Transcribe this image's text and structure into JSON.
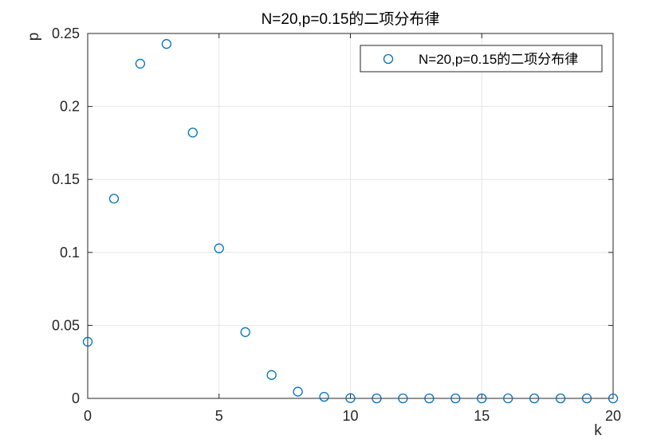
{
  "chart_data": {
    "type": "scatter",
    "title": "N=20,p=0.15的二项分布律",
    "xlabel": "k",
    "ylabel": "p",
    "xlim": [
      0,
      20
    ],
    "ylim": [
      0,
      0.25
    ],
    "xticks": [
      "0",
      "5",
      "10",
      "15",
      "20"
    ],
    "yticks": [
      "0",
      "0.05",
      "0.1",
      "0.15",
      "0.2",
      "0.25"
    ],
    "grid": true,
    "legend_position": "top-right",
    "marker": "open-circle",
    "series": [
      {
        "name": "N=20,p=0.15的二项分布律",
        "color": "#0072BD",
        "x": [
          0,
          1,
          2,
          3,
          4,
          5,
          6,
          7,
          8,
          9,
          10,
          11,
          12,
          13,
          14,
          15,
          16,
          17,
          18,
          19,
          20
        ],
        "y": [
          0.0388,
          0.1368,
          0.2293,
          0.2428,
          0.1821,
          0.1028,
          0.0454,
          0.016,
          0.0046,
          0.0011,
          0.0002,
          0.0,
          0.0,
          0.0,
          0.0,
          0.0,
          0.0,
          0.0,
          0.0,
          0.0,
          0.0
        ]
      }
    ]
  }
}
